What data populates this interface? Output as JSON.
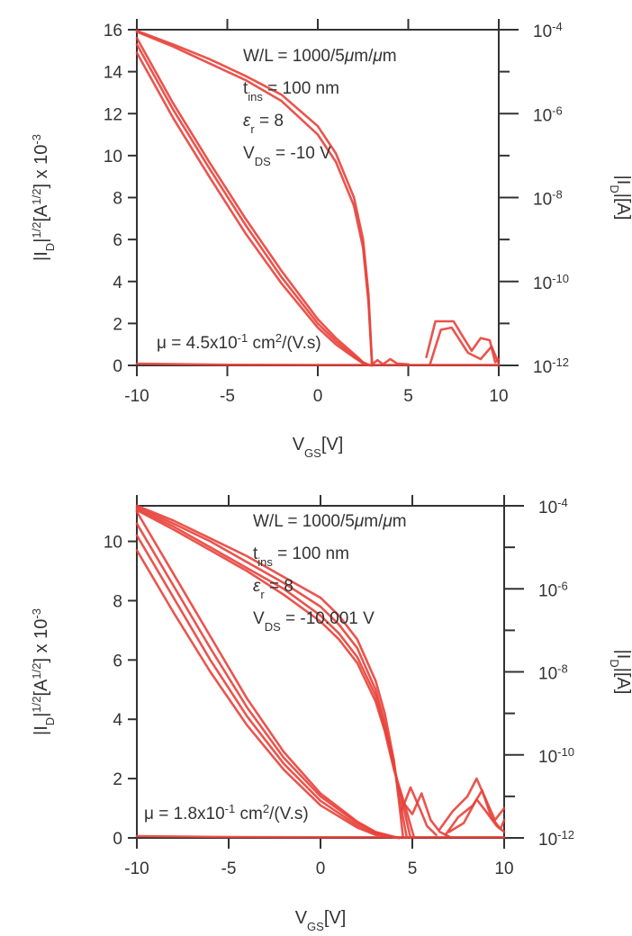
{
  "chart_data": [
    {
      "type": "line",
      "x_axis": {
        "ticks": [
          -10,
          -5,
          0,
          5,
          10
        ],
        "range": [
          -10,
          10
        ],
        "label_main": "V",
        "label_sub": "GS",
        "label_unit": "[V]"
      },
      "y_left": {
        "ticks": [
          0,
          2,
          4,
          6,
          8,
          10,
          12,
          14,
          16
        ],
        "range": [
          0,
          16
        ],
        "label": {
          "abs_open": "|I",
          "abs_sub": "D",
          "abs_close": "|",
          "pow": "1/2",
          "unit_open": "[A",
          "unit_pow": "1/2",
          "unit_close": "] x 10",
          "scale_pow": "-3"
        }
      },
      "y_right": {
        "scale": "log",
        "ticks": [
          {
            "mant": "10",
            "exp": "-4",
            "value": 0.0001
          },
          {
            "mant": "10",
            "exp": "-6",
            "value": 1e-06
          },
          {
            "mant": "10",
            "exp": "-8",
            "value": 1e-08
          },
          {
            "mant": "10",
            "exp": "-10",
            "value": 1e-10
          },
          {
            "mant": "10",
            "exp": "-12",
            "value": 1e-12
          }
        ],
        "range_exp": [
          -12,
          -4
        ],
        "label_main": "|I",
        "label_sub": "D",
        "label_close": "|",
        "label_unit": "[A]"
      },
      "annotations": {
        "wl": "W/L = 1000/5",
        "wl_unit_mu1": "μ",
        "wl_unit_m1": "m/",
        "wl_unit_mu2": "μ",
        "wl_unit_m2": "m",
        "tins_main": "t",
        "tins_sub": "ins",
        "tins_val": " = 100 nm",
        "er_main": "ε",
        "er_sub": "r",
        "er_val": " = 8",
        "vds_main": "V",
        "vds_sub": "DS",
        "vds_val": " = -10 V",
        "mobility_main": "μ = 4.5x10",
        "mobility_exp1": "-1",
        "mobility_mid": " cm",
        "mobility_exp2": "2",
        "mobility_tail": "/(V.s)"
      },
      "series": [
        {
          "axis": "left",
          "x": [
            -10,
            -8,
            -6,
            -4,
            -2,
            0,
            1,
            2,
            2.5,
            2.8,
            3.0
          ],
          "y": [
            15.3,
            12.2,
            9.4,
            6.7,
            4.2,
            2.0,
            1.15,
            0.45,
            0.12,
            0.02,
            0
          ]
        },
        {
          "axis": "left",
          "x": [
            -10,
            -8,
            -6,
            -4,
            -2,
            0,
            1,
            2,
            2.5,
            2.8,
            3.0
          ],
          "y": [
            14.9,
            11.8,
            9.0,
            6.3,
            3.9,
            1.8,
            1.0,
            0.38,
            0.1,
            0.01,
            0
          ]
        },
        {
          "axis": "left",
          "x": [
            -10,
            -8,
            -6,
            -4,
            -2,
            0,
            1,
            2,
            2.5,
            2.8,
            3.0
          ],
          "y": [
            15.6,
            12.5,
            9.7,
            7.0,
            4.5,
            2.2,
            1.3,
            0.55,
            0.15,
            0.03,
            0
          ]
        },
        {
          "axis": "left",
          "x": [
            -10,
            -8,
            -6,
            -4,
            -2,
            0,
            1,
            2,
            2.5,
            2.8,
            3.0
          ],
          "y": [
            15.9,
            15.2,
            14.4,
            13.6,
            12.6,
            11.0,
            9.7,
            7.6,
            5.6,
            3.0,
            0
          ]
        },
        {
          "axis": "left",
          "x": [
            -10,
            -8,
            -6,
            -4,
            -2,
            0,
            1,
            2,
            2.5,
            2.8,
            3.0
          ],
          "y": [
            15.95,
            15.3,
            14.6,
            13.8,
            12.9,
            11.4,
            10.1,
            8.0,
            6.0,
            3.4,
            0
          ]
        },
        {
          "axis": "left",
          "x": [
            -10,
            -5,
            0,
            3,
            10
          ],
          "y": [
            0.08,
            0.03,
            0.02,
            0.02,
            0.02
          ]
        },
        {
          "axis": "left",
          "x": [
            3.0,
            3.3,
            3.6,
            4.0,
            4.4,
            5.0
          ],
          "y": [
            0.05,
            0.25,
            0.05,
            0.3,
            0.08,
            0.05
          ]
        },
        {
          "axis": "left",
          "x": [
            6.0,
            6.5,
            7.5,
            8.0,
            8.5,
            9.0,
            9.5,
            9.8,
            10.0
          ],
          "y": [
            0.4,
            2.1,
            2.1,
            1.4,
            0.7,
            1.3,
            1.2,
            0.15,
            0.3
          ]
        },
        {
          "axis": "left",
          "x": [
            6.2,
            6.8,
            7.4,
            8.3,
            9.0,
            9.6,
            10.0
          ],
          "y": [
            0.05,
            1.7,
            1.8,
            0.6,
            0.3,
            0.9,
            0.1
          ]
        }
      ]
    },
    {
      "type": "line",
      "x_axis": {
        "ticks": [
          -10,
          -5,
          0,
          5,
          10
        ],
        "range": [
          -10,
          10
        ],
        "label_main": "V",
        "label_sub": "GS",
        "label_unit": "[V]"
      },
      "y_left": {
        "ticks": [
          0,
          2,
          4,
          6,
          8,
          10
        ],
        "range": [
          0,
          11.2
        ],
        "label": {
          "abs_open": "|I",
          "abs_sub": "D",
          "abs_close": "|",
          "pow": "1/2",
          "unit_open": "[A",
          "unit_pow": "1/2",
          "unit_close": "] x 10",
          "scale_pow": "-3"
        }
      },
      "y_right": {
        "scale": "log",
        "ticks": [
          {
            "mant": "10",
            "exp": "-4",
            "value": 0.0001
          },
          {
            "mant": "10",
            "exp": "-6",
            "value": 1e-06
          },
          {
            "mant": "10",
            "exp": "-8",
            "value": 1e-08
          },
          {
            "mant": "10",
            "exp": "-10",
            "value": 1e-10
          },
          {
            "mant": "10",
            "exp": "-12",
            "value": 1e-12
          }
        ],
        "range_exp": [
          -12,
          -4
        ],
        "label_main": "|I",
        "label_sub": "D",
        "label_close": "|",
        "label_unit": "[A]"
      },
      "annotations": {
        "wl": "W/L = 1000/5",
        "wl_unit_mu1": "μ",
        "wl_unit_m1": "m/",
        "wl_unit_mu2": "μ",
        "wl_unit_m2": "m",
        "tins_main": "t",
        "tins_sub": "ins",
        "tins_val": " = 100 nm",
        "er_main": "ε",
        "er_sub": "r",
        "er_val": " = 8",
        "vds_main": "V",
        "vds_sub": "DS",
        "vds_val": " = -10.001 V",
        "mobility_main": "μ = 1.8x10",
        "mobility_exp1": "-1",
        "mobility_mid": " cm",
        "mobility_exp2": "2",
        "mobility_tail": "/(V.s)"
      },
      "series": [
        {
          "axis": "left",
          "x": [
            -10,
            -8,
            -6,
            -4,
            -2,
            0,
            2,
            3,
            4,
            4.3
          ],
          "y": [
            9.7,
            7.6,
            5.6,
            3.8,
            2.3,
            1.1,
            0.35,
            0.1,
            0.01,
            0
          ]
        },
        {
          "axis": "left",
          "x": [
            -10,
            -8,
            -6,
            -4,
            -2,
            0,
            2,
            3,
            4,
            4.3
          ],
          "y": [
            10.2,
            8.1,
            6.0,
            4.1,
            2.5,
            1.25,
            0.42,
            0.14,
            0.02,
            0
          ]
        },
        {
          "axis": "left",
          "x": [
            -10,
            -8,
            -6,
            -4,
            -2,
            0,
            2,
            3,
            4,
            4.3
          ],
          "y": [
            10.6,
            8.5,
            6.4,
            4.4,
            2.7,
            1.4,
            0.5,
            0.18,
            0.03,
            0
          ]
        },
        {
          "axis": "left",
          "x": [
            -10,
            -8,
            -6,
            -4,
            -2,
            0,
            2,
            3,
            4,
            4.3
          ],
          "y": [
            11.0,
            8.9,
            6.8,
            4.7,
            2.9,
            1.5,
            0.55,
            0.2,
            0.04,
            0
          ]
        },
        {
          "axis": "left",
          "x": [
            -10,
            -8,
            -6,
            -4,
            -2,
            0,
            1,
            2,
            3,
            3.5,
            4.0,
            4.3,
            4.5
          ],
          "y": [
            11.2,
            10.7,
            10.1,
            9.5,
            8.8,
            8.1,
            7.5,
            6.7,
            5.3,
            4.2,
            2.6,
            1.1,
            0
          ]
        },
        {
          "axis": "left",
          "x": [
            -10,
            -8,
            -6,
            -4,
            -2,
            0,
            1,
            2,
            3,
            3.5,
            4.0,
            4.4,
            4.7
          ],
          "y": [
            11.15,
            10.6,
            10.0,
            9.3,
            8.6,
            7.8,
            7.2,
            6.4,
            5.0,
            3.9,
            2.5,
            1.0,
            0
          ]
        },
        {
          "axis": "left",
          "x": [
            -10,
            -8,
            -6,
            -4,
            -2,
            0,
            1,
            2,
            3,
            3.5,
            4.0,
            4.5,
            4.9
          ],
          "y": [
            11.1,
            10.5,
            9.8,
            9.1,
            8.4,
            7.5,
            6.9,
            6.1,
            4.8,
            3.7,
            2.4,
            1.1,
            0
          ]
        },
        {
          "axis": "left",
          "x": [
            -10,
            -8,
            -6,
            -4,
            -2,
            0,
            1,
            2,
            3,
            3.5,
            4.0,
            4.6,
            5.1
          ],
          "y": [
            11.05,
            10.4,
            9.7,
            9.0,
            8.2,
            7.3,
            6.7,
            5.9,
            4.6,
            3.6,
            2.3,
            1.1,
            0
          ]
        },
        {
          "axis": "left",
          "x": [
            -10,
            -5,
            0,
            4.5,
            10
          ],
          "y": [
            0.06,
            0.03,
            0.02,
            0.02,
            0.02
          ]
        },
        {
          "axis": "left",
          "x": [
            4.5,
            5.0,
            5.5,
            6.0,
            6.5,
            7.0
          ],
          "y": [
            1.2,
            0.8,
            1.5,
            0.6,
            0.2,
            0.05
          ]
        },
        {
          "axis": "left",
          "x": [
            4.4,
            4.9,
            5.4,
            5.8,
            6.3
          ],
          "y": [
            0.9,
            1.7,
            1.0,
            0.4,
            0.1
          ]
        },
        {
          "axis": "left",
          "x": [
            6.5,
            7.2,
            8.0,
            8.5,
            9.0,
            9.5,
            10.0
          ],
          "y": [
            0.3,
            0.9,
            1.4,
            2.0,
            1.3,
            0.6,
            1.0
          ]
        },
        {
          "axis": "left",
          "x": [
            6.8,
            7.5,
            8.3,
            8.8,
            9.3,
            9.8,
            10.0
          ],
          "y": [
            0.1,
            0.7,
            1.1,
            1.6,
            0.7,
            0.3,
            0.6
          ]
        },
        {
          "axis": "left",
          "x": [
            7.0,
            7.8,
            8.5,
            9.0,
            9.6,
            10.0
          ],
          "y": [
            0.2,
            0.5,
            1.3,
            0.9,
            0.4,
            0.2
          ]
        }
      ]
    }
  ],
  "colors": {
    "trace": "#e8413a",
    "axis": "#333333",
    "text": "#333333"
  }
}
